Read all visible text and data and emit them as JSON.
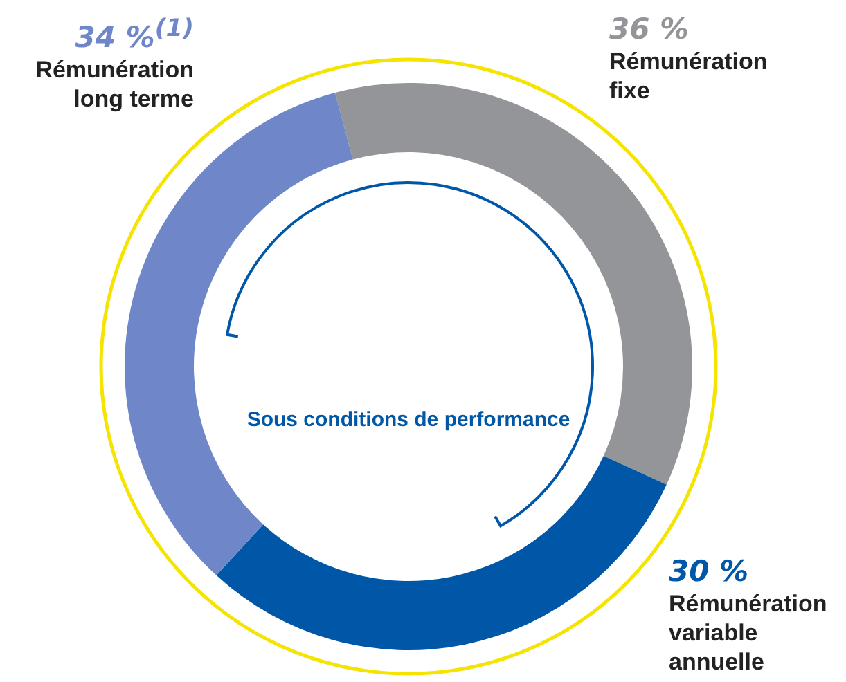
{
  "chart_data": {
    "type": "donut",
    "categories": [
      "Rémunération fixe",
      "Rémunération variable annuelle",
      "Rémunération long terme"
    ],
    "values": [
      36,
      30,
      34
    ],
    "colors": [
      "#939598",
      "#0057a8",
      "#6f87c8"
    ],
    "value_labels": [
      "36 %",
      "30 %",
      "34 %$^{(1)}$"
    ],
    "annotations": [
      "Sous conditions de performance"
    ],
    "legend": false
  }
}
